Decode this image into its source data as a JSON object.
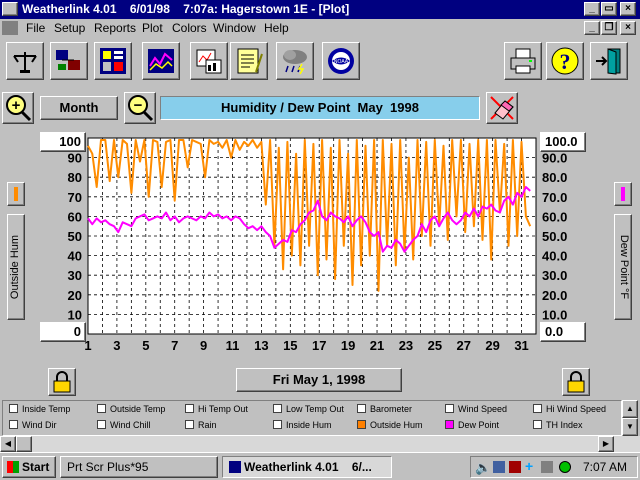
{
  "window": {
    "title": "Weatherlink 4.01    6/01/98    7:07a: Hagerstown 1E - [Plot]"
  },
  "menu": [
    "File",
    "Setup",
    "Reports",
    "Plot",
    "Colors",
    "Window",
    "Help"
  ],
  "toolbar": {
    "icons": [
      "station-icon",
      "connection-icon",
      "bulletin-icon",
      "graph-icon",
      "summary-icon",
      "notepad-icon",
      "weather-cloud-icon",
      "noaa-icon",
      "printer-icon",
      "help-icon",
      "exit-icon"
    ]
  },
  "controls": {
    "zoom_in": "+",
    "span_label": "Month",
    "zoom_out": "−",
    "plot_title": "Humidity / Dew Point  May  1998"
  },
  "left_axis": {
    "label": "Outside Hum",
    "max": "100",
    "min": "0",
    "ticks": [
      "90",
      "80",
      "70",
      "60",
      "50",
      "40",
      "30",
      "20",
      "10"
    ]
  },
  "right_axis": {
    "label": "Dew Point °F",
    "max": "100.0",
    "min": "0.0",
    "ticks": [
      "90.0",
      "80.0",
      "70.0",
      "60.0",
      "50.0",
      "40.0",
      "30.0",
      "20.0",
      "10.0"
    ]
  },
  "date_label": "Fri May 1, 1998",
  "legend": [
    [
      {
        "label": "Inside Temp",
        "color": "#ffffff"
      },
      {
        "label": "Outside Temp",
        "color": "#ffffff"
      },
      {
        "label": "Hi Temp Out",
        "color": "#ffffff"
      },
      {
        "label": "Low Temp Out",
        "color": "#ffffff"
      },
      {
        "label": "Barometer",
        "color": "#ffffff"
      },
      {
        "label": "Wind Speed",
        "color": "#ffffff"
      },
      {
        "label": "Hi Wind Speed",
        "color": "#ffffff"
      }
    ],
    [
      {
        "label": "Wind Dir",
        "color": "#ffffff"
      },
      {
        "label": "Wind Chill",
        "color": "#ffffff"
      },
      {
        "label": "Rain",
        "color": "#ffffff"
      },
      {
        "label": "Inside Hum",
        "color": "#ffffff"
      },
      {
        "label": "Outside Hum",
        "color": "#ff8000"
      },
      {
        "label": "Dew Point",
        "color": "#ff00ff"
      },
      {
        "label": "TH Index",
        "color": "#ffffff"
      }
    ]
  ],
  "taskbar": {
    "start": "Start",
    "tasks": [
      "Prt Scr Plus*95",
      "Weatherlink 4.01    6/..."
    ],
    "clock": "7:07 AM"
  },
  "colors": {
    "humidity": "#ff8c00",
    "dewpoint": "#ff00ff",
    "title_bar": "#000080",
    "title_field": "#87ceeb"
  },
  "chart_data": {
    "type": "line",
    "title": "Humidity / Dew Point  May  1998",
    "xlabel": "",
    "ylabel": "Outside Hum",
    "y2label": "Dew Point °F",
    "x_ticks": [
      "1",
      "3",
      "5",
      "7",
      "9",
      "11",
      "13",
      "15",
      "17",
      "19",
      "21",
      "23",
      "25",
      "27",
      "29",
      "31"
    ],
    "xlim": [
      1,
      32
    ],
    "ylim": [
      0,
      100
    ],
    "grid": true,
    "series": [
      {
        "name": "Outside Hum",
        "color": "#ff8c00",
        "x": [
          1,
          1.3,
          1.6,
          1.9,
          2.2,
          2.5,
          2.8,
          3.1,
          3.4,
          3.7,
          4.0,
          4.3,
          4.6,
          4.9,
          5.2,
          5.5,
          5.8,
          6.1,
          6.4,
          6.7,
          7.0,
          7.3,
          7.6,
          7.9,
          8.2,
          8.5,
          8.8,
          9.1,
          9.4,
          9.7,
          10.0,
          10.3,
          10.6,
          10.9,
          11.2,
          11.5,
          11.8,
          12.1,
          12.4,
          12.7,
          13.0,
          13.3,
          13.6,
          13.9,
          14.2,
          14.5,
          14.8,
          15.1,
          15.4,
          15.7,
          16.0,
          16.3,
          16.6,
          16.9,
          17.2,
          17.5,
          17.8,
          18.1,
          18.4,
          18.7,
          19.0,
          19.3,
          19.6,
          19.9,
          20.2,
          20.5,
          20.8,
          21.1,
          21.4,
          21.7,
          22.0,
          22.3,
          22.6,
          22.9,
          23.2,
          23.5,
          23.8,
          24.1,
          24.4,
          24.7,
          25.0,
          25.3,
          25.6,
          25.9,
          26.2,
          26.5,
          26.8,
          27.1,
          27.4,
          27.7,
          28.0,
          28.3,
          28.6,
          28.9,
          29.2,
          29.5,
          29.8,
          30.1,
          30.4,
          30.7,
          31.0,
          31.3,
          31.6
        ],
        "values": [
          96,
          92,
          75,
          99,
          99,
          78,
          99,
          80,
          99,
          97,
          72,
          99,
          88,
          99,
          70,
          99,
          98,
          75,
          98,
          99,
          68,
          99,
          99,
          85,
          99,
          98,
          97,
          80,
          99,
          97,
          98,
          95,
          99,
          90,
          99,
          94,
          98,
          96,
          99,
          95,
          98,
          66,
          99,
          45,
          95,
          33,
          98,
          40,
          92,
          35,
          99,
          45,
          97,
          30,
          99,
          38,
          95,
          28,
          99,
          45,
          92,
          25,
          99,
          35,
          96,
          40,
          99,
          22,
          99,
          45,
          97,
          35,
          99,
          42,
          90,
          38,
          99,
          50,
          98,
          45,
          99,
          55,
          96,
          48,
          99,
          60,
          99,
          52,
          97,
          55,
          99,
          48,
          99,
          38,
          99,
          62,
          97,
          45,
          99,
          50,
          98,
          60,
          55
        ]
      },
      {
        "name": "Dew Point",
        "color": "#ff00ff",
        "x": [
          1,
          1.3,
          1.6,
          1.9,
          2.2,
          2.5,
          2.8,
          3.1,
          3.4,
          3.7,
          4.0,
          4.3,
          4.6,
          4.9,
          5.2,
          5.5,
          5.8,
          6.1,
          6.4,
          6.7,
          7.0,
          7.3,
          7.6,
          7.9,
          8.2,
          8.5,
          8.8,
          9.1,
          9.4,
          9.7,
          10.0,
          10.3,
          10.6,
          10.9,
          11.2,
          11.5,
          11.8,
          12.1,
          12.4,
          12.7,
          13.0,
          13.3,
          13.6,
          13.9,
          14.2,
          14.5,
          14.8,
          15.1,
          15.4,
          15.7,
          16.0,
          16.3,
          16.6,
          16.9,
          17.2,
          17.5,
          17.8,
          18.1,
          18.4,
          18.7,
          19.0,
          19.3,
          19.6,
          19.9,
          20.2,
          20.5,
          20.8,
          21.1,
          21.4,
          21.7,
          22.0,
          22.3,
          22.6,
          22.9,
          23.2,
          23.5,
          23.8,
          24.1,
          24.4,
          24.7,
          25.0,
          25.3,
          25.6,
          25.9,
          26.2,
          26.5,
          26.8,
          27.1,
          27.4,
          27.7,
          28.0,
          28.3,
          28.6,
          28.9,
          29.2,
          29.5,
          29.8,
          30.1,
          30.4,
          30.7,
          31.0,
          31.3,
          31.6
        ],
        "values": [
          59,
          56,
          59,
          57,
          58,
          56,
          55,
          52,
          57,
          56,
          55,
          59,
          60,
          61,
          58,
          59,
          60,
          59,
          62,
          58,
          60,
          57,
          59,
          60,
          59,
          58,
          60,
          59,
          62,
          60,
          61,
          59,
          60,
          58,
          60,
          59,
          56,
          54,
          55,
          53,
          55,
          52,
          50,
          44,
          46,
          48,
          47,
          53,
          52,
          56,
          58,
          62,
          63,
          68,
          60,
          58,
          62,
          60,
          59,
          57,
          60,
          55,
          58,
          60,
          57,
          52,
          50,
          52,
          42,
          45,
          44,
          48,
          46,
          42,
          45,
          48,
          50,
          56,
          52,
          58,
          60,
          55,
          59,
          62,
          58,
          56,
          58,
          62,
          60,
          64,
          60,
          65,
          64,
          66,
          63,
          62,
          68,
          70,
          66,
          72,
          70,
          75,
          73
        ]
      }
    ]
  }
}
